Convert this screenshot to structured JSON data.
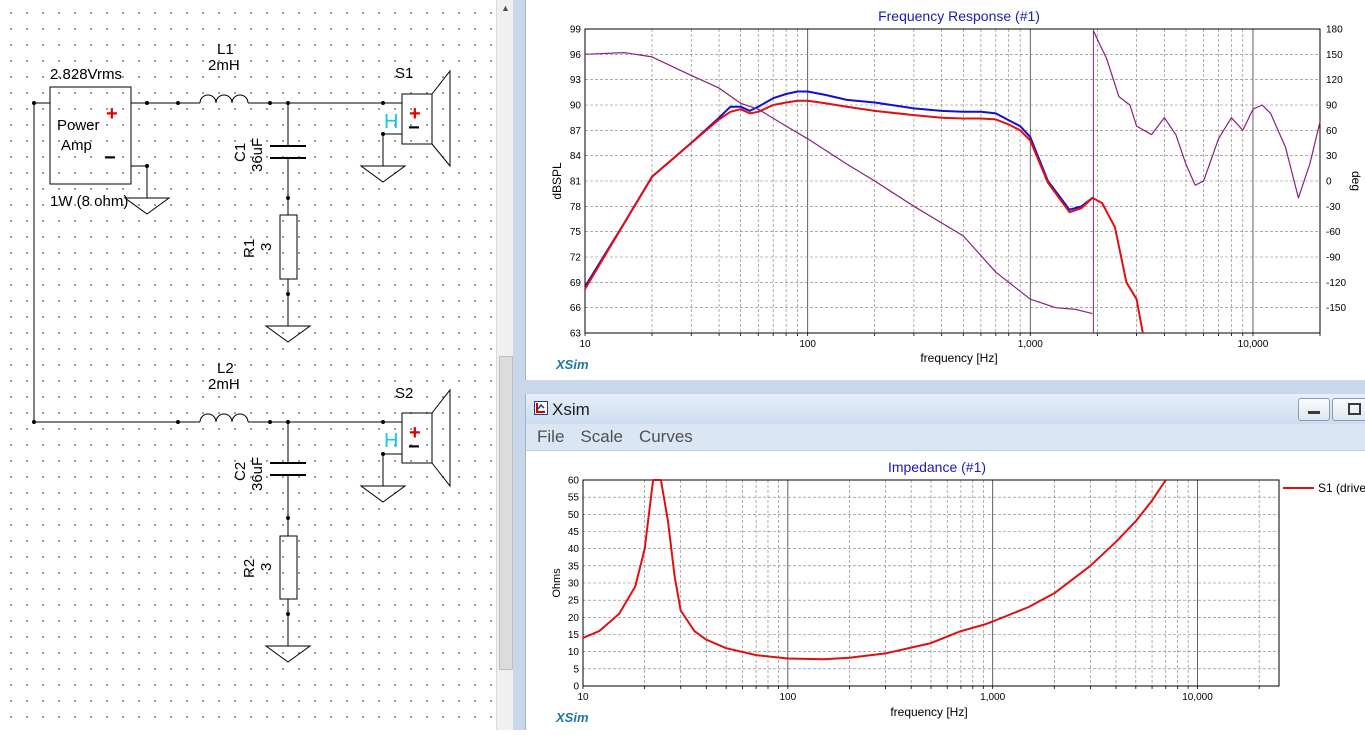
{
  "schematic": {
    "amp_voltage": "2.828Vrms",
    "amp_label_line1": "Power",
    "amp_label_line2": "Amp",
    "amp_power": "1W (8 ohm)",
    "L1_name": "L1",
    "L1_value": "2mH",
    "C1_name": "C1",
    "C1_value": "36uF",
    "R1_name": "R1",
    "R1_value": "3",
    "S1_name": "S1",
    "L2_name": "L2",
    "L2_value": "2mH",
    "C2_name": "C2",
    "C2_value": "36uF",
    "R2_name": "R2",
    "R2_value": "3",
    "S2_name": "S2",
    "plus_sign": "+",
    "minus_sign": "−",
    "speaker_mark": "H"
  },
  "freq_window": {
    "brand": "XSim"
  },
  "xsim_window": {
    "title": "Xsim",
    "menu": [
      "File",
      "Scale",
      "Curves"
    ],
    "brand": "XSim"
  },
  "colors": {
    "series_blue": "#1010d0",
    "series_red": "#e01010",
    "series_purple": "#8a2080",
    "title_blue": "#1a1ab8",
    "brand": "#1a7aa0"
  },
  "chart_data": [
    {
      "type": "line",
      "title": "Frequency Response (#1)",
      "xlabel": "frequency [Hz]",
      "ylabel": "dBSPL",
      "y2label": "deg",
      "x_scale": "log",
      "xlim": [
        10,
        20000
      ],
      "ylim": [
        63,
        99
      ],
      "y2lim": [
        -180,
        180
      ],
      "x_tick_labels": [
        "10",
        "100",
        "1,000",
        "10,000"
      ],
      "y_ticks": [
        99,
        96,
        93,
        90,
        87,
        84,
        81,
        78,
        75,
        72,
        69,
        66,
        63
      ],
      "y2_ticks": [
        180,
        150,
        120,
        90,
        60,
        30,
        0,
        -30,
        -60,
        -90,
        -120,
        -150
      ],
      "grid": true,
      "series": [
        {
          "axis": "left",
          "color": "#1010d0",
          "x": [
            10,
            15,
            20,
            30,
            40,
            45,
            50,
            55,
            60,
            70,
            80,
            90,
            100,
            120,
            150,
            200,
            300,
            400,
            500,
            600,
            700,
            800,
            900,
            1000,
            1200,
            1500,
            1700,
            1900
          ],
          "y": [
            68.5,
            76,
            81.5,
            85.5,
            88.5,
            89.8,
            89.8,
            89.3,
            89.8,
            90.8,
            91.3,
            91.6,
            91.6,
            91.2,
            90.6,
            90.3,
            89.6,
            89.3,
            89.2,
            89.2,
            89.0,
            88.2,
            87.5,
            86.2,
            81.0,
            77.6,
            78.0,
            79.0
          ]
        },
        {
          "axis": "left",
          "color": "#e01010",
          "x": [
            10,
            15,
            20,
            30,
            40,
            45,
            50,
            55,
            60,
            70,
            80,
            90,
            100,
            120,
            150,
            200,
            300,
            400,
            500,
            600,
            700,
            800,
            900,
            1000,
            1200,
            1500,
            1700,
            1900,
            2100,
            2400,
            2700,
            3000,
            3200
          ],
          "y": [
            68.2,
            76,
            81.5,
            85.5,
            88.3,
            89.2,
            89.5,
            89.0,
            89.2,
            90.0,
            90.3,
            90.5,
            90.5,
            90.2,
            89.8,
            89.3,
            88.8,
            88.5,
            88.4,
            88.4,
            88.3,
            87.7,
            87.0,
            85.8,
            80.8,
            77.3,
            77.8,
            79.0,
            78.4,
            75.5,
            69.0,
            67.0,
            63.0
          ]
        },
        {
          "axis": "right",
          "color": "#8a2080",
          "x": [
            10,
            15,
            20,
            30,
            40,
            50,
            60,
            80,
            100,
            150,
            200,
            300,
            500,
            700,
            1000,
            1300,
            1600,
            1900,
            1920,
            2000,
            2200,
            2500,
            2800,
            3000,
            3500,
            4000,
            4500,
            5000,
            5500,
            6000,
            7000,
            8000,
            9000,
            10000,
            11000,
            12000,
            14000,
            16000,
            18000,
            20000
          ],
          "y": [
            150,
            152,
            147,
            125,
            110,
            92,
            85,
            65,
            50,
            20,
            0,
            -30,
            -65,
            -108,
            -140,
            -150,
            -152,
            -157,
            178,
            168,
            145,
            100,
            90,
            65,
            55,
            75,
            55,
            20,
            -5,
            0,
            50,
            75,
            60,
            85,
            90,
            80,
            40,
            -20,
            20,
            70
          ]
        }
      ]
    },
    {
      "type": "line",
      "title": "Impedance (#1)",
      "xlabel": "frequency [Hz]",
      "ylabel": "Ohms",
      "x_scale": "log",
      "xlim": [
        10,
        25000
      ],
      "ylim": [
        0,
        60
      ],
      "x_tick_labels": [
        "10",
        "100",
        "1,000",
        "10,000"
      ],
      "y_ticks": [
        60,
        55,
        50,
        45,
        40,
        35,
        30,
        25,
        20,
        15,
        10,
        5,
        0
      ],
      "grid": true,
      "legend": "right",
      "series": [
        {
          "name": "S1 (drive",
          "color": "#e01010",
          "x": [
            10,
            12,
            15,
            18,
            20,
            22,
            24,
            26,
            28,
            30,
            35,
            40,
            50,
            70,
            100,
            150,
            200,
            300,
            500,
            700,
            900,
            1000,
            1500,
            2000,
            3000,
            4000,
            5000,
            6000,
            7000
          ],
          "y": [
            14,
            16,
            21,
            29,
            40,
            60,
            60,
            48,
            32,
            22,
            16,
            13.5,
            11,
            9,
            8,
            7.8,
            8.2,
            9.5,
            12.5,
            16,
            17.8,
            18.8,
            23,
            27,
            35,
            42,
            48,
            54,
            60
          ]
        }
      ]
    }
  ]
}
